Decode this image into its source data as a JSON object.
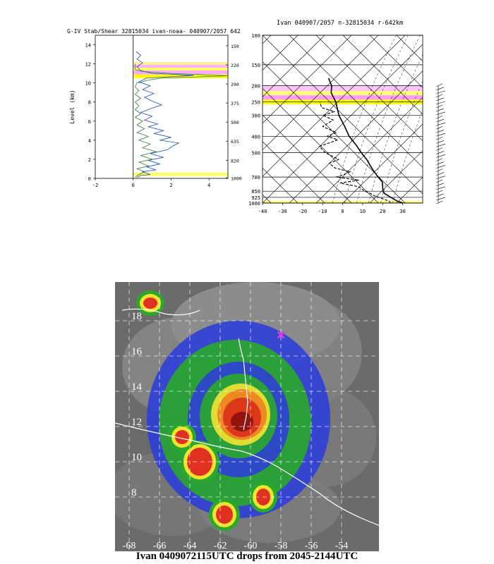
{
  "figure_caption": "Ivan 0409072115UTC drops from 2045-2144UTC",
  "chart_data": [
    {
      "type": "line",
      "title": "G-IV Stab/Shear 32815034 ivan-noaa- 040907/2057 642",
      "ylabel": "Level (km)",
      "xlim": [
        -2,
        5
      ],
      "ylim": [
        0,
        15
      ],
      "x_ticks": [
        -2,
        0,
        2,
        4
      ],
      "y_ticks": [
        0,
        2,
        4,
        6,
        8,
        10,
        12,
        14
      ],
      "right_pressure_labels": [
        {
          "km": 13.9,
          "label": "150"
        },
        {
          "km": 11.9,
          "label": "220"
        },
        {
          "km": 9.9,
          "label": "290"
        },
        {
          "km": 7.9,
          "label": "375"
        },
        {
          "km": 5.9,
          "label": "500"
        },
        {
          "km": 3.9,
          "label": "635"
        },
        {
          "km": 1.9,
          "label": "820"
        },
        {
          "km": 0.05,
          "label": "1000"
        }
      ],
      "highlight_bands": [
        {
          "from_km": 11.9,
          "to_km": 12.2,
          "color": "#fff099"
        },
        {
          "from_km": 11.6,
          "to_km": 11.9,
          "color": "#ffb0ff"
        },
        {
          "from_km": 11.3,
          "to_km": 11.6,
          "color": "#ffff66"
        },
        {
          "from_km": 10.9,
          "to_km": 11.3,
          "color": "#ffaaff"
        },
        {
          "from_km": 10.5,
          "to_km": 10.9,
          "color": "#ffff00"
        },
        {
          "from_km": 0.25,
          "to_km": 0.6,
          "color": "#ffff66"
        }
      ],
      "series": [
        {
          "color": "#1d4fbf",
          "points": [
            [
              0.2,
              0.1
            ],
            [
              0.4,
              0.3
            ],
            [
              0.9,
              0.4
            ],
            [
              0.5,
              0.7
            ],
            [
              1.2,
              0.9
            ],
            [
              0.7,
              1.2
            ],
            [
              1.4,
              1.5
            ],
            [
              0.8,
              1.9
            ],
            [
              1.6,
              2.2
            ],
            [
              0.9,
              2.6
            ],
            [
              1.8,
              3.0
            ],
            [
              2.1,
              3.4
            ],
            [
              2.4,
              3.7
            ],
            [
              1.4,
              4.0
            ],
            [
              2.0,
              4.3
            ],
            [
              1.1,
              4.7
            ],
            [
              1.6,
              5.0
            ],
            [
              0.8,
              5.4
            ],
            [
              1.3,
              5.7
            ],
            [
              0.6,
              6.1
            ],
            [
              1.0,
              6.5
            ],
            [
              0.4,
              6.9
            ],
            [
              0.9,
              7.3
            ],
            [
              1.5,
              7.7
            ],
            [
              1.0,
              8.1
            ],
            [
              0.6,
              8.5
            ],
            [
              1.1,
              8.9
            ],
            [
              0.5,
              9.3
            ],
            [
              0.9,
              9.7
            ],
            [
              0.3,
              10.1
            ],
            [
              0.7,
              10.5
            ],
            [
              3.2,
              10.8
            ],
            [
              1.0,
              11.0
            ],
            [
              0.4,
              11.3
            ],
            [
              0.2,
              11.7
            ],
            [
              0.5,
              12.1
            ],
            [
              0.2,
              12.5
            ],
            [
              0.4,
              12.9
            ],
            [
              0.15,
              13.3
            ]
          ]
        },
        {
          "color": "#2f7a3a",
          "points": [
            [
              0.1,
              0.1
            ],
            [
              0.3,
              0.4
            ],
            [
              0.6,
              0.7
            ],
            [
              0.2,
              1.0
            ],
            [
              0.8,
              1.3
            ],
            [
              0.3,
              1.7
            ],
            [
              1.0,
              2.0
            ],
            [
              0.4,
              2.4
            ],
            [
              1.2,
              2.8
            ],
            [
              0.5,
              3.2
            ],
            [
              0.9,
              3.6
            ],
            [
              0.3,
              4.0
            ],
            [
              0.8,
              4.4
            ],
            [
              0.2,
              4.8
            ],
            [
              0.6,
              5.2
            ],
            [
              0.2,
              5.6
            ],
            [
              0.5,
              6.0
            ],
            [
              0.1,
              6.4
            ],
            [
              0.4,
              6.8
            ],
            [
              0.1,
              7.2
            ],
            [
              0.3,
              7.6
            ],
            [
              0.1,
              8.0
            ],
            [
              0.4,
              8.4
            ],
            [
              0.1,
              8.8
            ],
            [
              0.3,
              9.2
            ],
            [
              0.1,
              9.6
            ],
            [
              0.2,
              10.0
            ],
            [
              0.8,
              10.3
            ],
            [
              1.5,
              10.5
            ],
            [
              3.0,
              10.6
            ],
            [
              5.0,
              10.75
            ],
            [
              2.0,
              11.0
            ],
            [
              0.5,
              11.2
            ],
            [
              0.1,
              11.4
            ],
            [
              0.1,
              12.0
            ]
          ]
        }
      ]
    },
    {
      "type": "line",
      "title": "Ivan 040907/2057 n-32815034 r-642km",
      "xlim": [
        -40,
        40
      ],
      "x_ticks": [
        -40,
        -30,
        -20,
        -10,
        0,
        10,
        20,
        30
      ],
      "pressure_levels": [
        "100",
        "150",
        "200",
        "250",
        "300",
        "400",
        "500",
        "700",
        "850",
        "925",
        "1000"
      ],
      "highlight_bands": [
        {
          "from_hpa": 200,
          "to_hpa": 215,
          "color": "#ffc6ff"
        },
        {
          "from_hpa": 215,
          "to_hpa": 228,
          "color": "#ffff7a"
        },
        {
          "from_hpa": 228,
          "to_hpa": 242,
          "color": "#ff9aff"
        },
        {
          "from_hpa": 242,
          "to_hpa": 258,
          "color": "#ffff00"
        },
        {
          "from_hpa": 975,
          "to_hpa": 1000,
          "color": "#ffff66"
        }
      ],
      "series": [
        {
          "style": "solid",
          "points": [
            [
              30,
              1000
            ],
            [
              29,
              990
            ],
            [
              27,
              975
            ],
            [
              25,
              950
            ],
            [
              23,
              925
            ],
            [
              21,
              900
            ],
            [
              19,
              875
            ],
            [
              18,
              850
            ],
            [
              17,
              800
            ],
            [
              16,
              750
            ],
            [
              13,
              700
            ],
            [
              10,
              650
            ],
            [
              7,
              600
            ],
            [
              4,
              550
            ],
            [
              0,
              500
            ],
            [
              -4,
              450
            ],
            [
              -9,
              400
            ],
            [
              -13,
              350
            ],
            [
              -18,
              300
            ],
            [
              -22,
              250
            ],
            [
              -26,
              220
            ],
            [
              -27,
              200
            ],
            [
              -30,
              180
            ]
          ]
        },
        {
          "style": "dashed",
          "points": [
            [
              24,
              1000
            ],
            [
              23,
              975
            ],
            [
              20,
              950
            ],
            [
              17,
              925
            ],
            [
              14,
              900
            ],
            [
              12,
              875
            ],
            [
              9,
              850
            ],
            [
              5,
              800
            ],
            [
              -5,
              760
            ],
            [
              4,
              730
            ],
            [
              -8,
              700
            ],
            [
              -5,
              680
            ],
            [
              -2,
              650
            ],
            [
              -10,
              620
            ],
            [
              -14,
              580
            ],
            [
              -10,
              550
            ],
            [
              -18,
              500
            ],
            [
              -22,
              460
            ],
            [
              -14,
              420
            ],
            [
              -20,
              400
            ],
            [
              -16,
              380
            ],
            [
              -24,
              350
            ],
            [
              -20,
              320
            ],
            [
              -26,
              300
            ],
            [
              -21,
              285
            ],
            [
              -28,
              270
            ],
            [
              -30,
              250
            ]
          ]
        }
      ]
    }
  ],
  "map": {
    "lat_labels": [
      "18",
      "16",
      "14",
      "12",
      "10",
      "8"
    ],
    "lon_labels": [
      "-68",
      "-66",
      "-64",
      "-62",
      "-60",
      "-58",
      "-56",
      "-54"
    ],
    "marker_symbol": "×",
    "marker_color": "#e23be0"
  }
}
